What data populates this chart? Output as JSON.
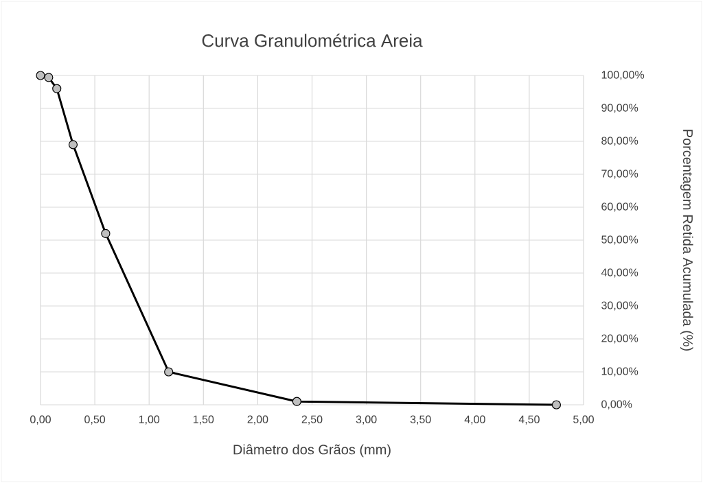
{
  "chart_data": {
    "type": "line",
    "title": "Curva Granulométrica Areia",
    "xlabel": "Diâmetro dos Grãos  (mm)",
    "ylabel": "Porcentagem Retida Acumulada (%)",
    "x": [
      0,
      0.075,
      0.15,
      0.3,
      0.6,
      1.18,
      2.36,
      4.75
    ],
    "series": [
      {
        "color": "#000000",
        "values": [
          100,
          99.4,
          96,
          79,
          52,
          10,
          1,
          0
        ]
      }
    ],
    "xlim": [
      0,
      5
    ],
    "ylim": [
      0,
      100
    ],
    "xticks": [
      {
        "value": 0,
        "label": "0,00"
      },
      {
        "value": 0.5,
        "label": "0,50"
      },
      {
        "value": 1,
        "label": "1,00"
      },
      {
        "value": 1.5,
        "label": "1,50"
      },
      {
        "value": 2,
        "label": "2,00"
      },
      {
        "value": 2.5,
        "label": "2,50"
      },
      {
        "value": 3,
        "label": "3,00"
      },
      {
        "value": 3.5,
        "label": "3,50"
      },
      {
        "value": 4,
        "label": "4,00"
      },
      {
        "value": 4.5,
        "label": "4,50"
      },
      {
        "value": 5,
        "label": "5,00"
      }
    ],
    "yticks": [
      {
        "value": 0,
        "label": "0,00%"
      },
      {
        "value": 10,
        "label": "10,00%"
      },
      {
        "value": 20,
        "label": "20,00%"
      },
      {
        "value": 30,
        "label": "30,00%"
      },
      {
        "value": 40,
        "label": "40,00%"
      },
      {
        "value": 50,
        "label": "50,00%"
      },
      {
        "value": 60,
        "label": "60,00%"
      },
      {
        "value": 70,
        "label": "70,00%"
      },
      {
        "value": 80,
        "label": "80,00%"
      },
      {
        "value": 90,
        "label": "90,00%"
      },
      {
        "value": 100,
        "label": "100,00%"
      }
    ],
    "grid": true,
    "marker": "circle",
    "line_style": "solid"
  }
}
